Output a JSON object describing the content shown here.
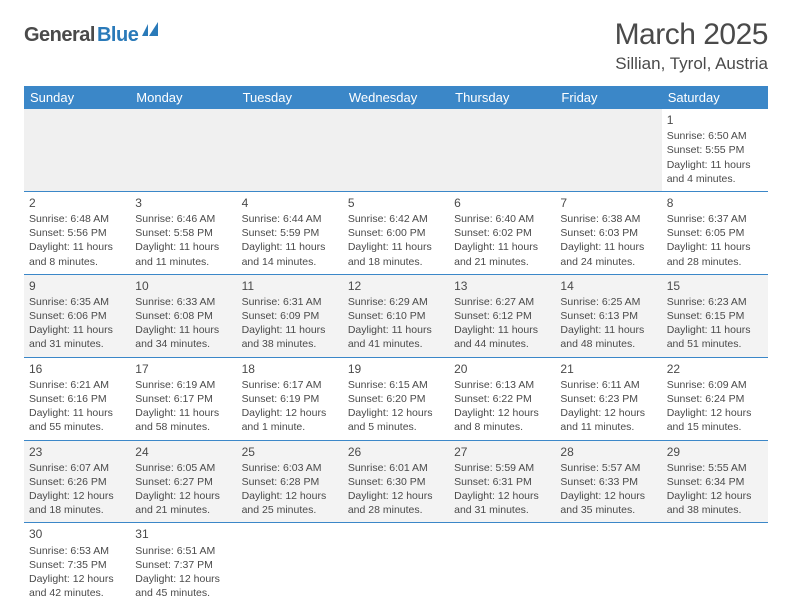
{
  "logo": {
    "dark": "General",
    "blue": "Blue"
  },
  "title": "March 2025",
  "location": "Sillian, Tyrol, Austria",
  "colors": {
    "header_bg": "#3b87c8",
    "header_fg": "#ffffff",
    "row_alt_bg": "#f3f3f3",
    "border": "#3b87c8",
    "text": "#4a4a4a",
    "logo_blue": "#2a7ab9"
  },
  "weekdays": [
    "Sunday",
    "Monday",
    "Tuesday",
    "Wednesday",
    "Thursday",
    "Friday",
    "Saturday"
  ],
  "weeks": [
    [
      null,
      null,
      null,
      null,
      null,
      null,
      {
        "n": "1",
        "sr": "Sunrise: 6:50 AM",
        "ss": "Sunset: 5:55 PM",
        "d1": "Daylight: 11 hours",
        "d2": "and 4 minutes."
      }
    ],
    [
      {
        "n": "2",
        "sr": "Sunrise: 6:48 AM",
        "ss": "Sunset: 5:56 PM",
        "d1": "Daylight: 11 hours",
        "d2": "and 8 minutes."
      },
      {
        "n": "3",
        "sr": "Sunrise: 6:46 AM",
        "ss": "Sunset: 5:58 PM",
        "d1": "Daylight: 11 hours",
        "d2": "and 11 minutes."
      },
      {
        "n": "4",
        "sr": "Sunrise: 6:44 AM",
        "ss": "Sunset: 5:59 PM",
        "d1": "Daylight: 11 hours",
        "d2": "and 14 minutes."
      },
      {
        "n": "5",
        "sr": "Sunrise: 6:42 AM",
        "ss": "Sunset: 6:00 PM",
        "d1": "Daylight: 11 hours",
        "d2": "and 18 minutes."
      },
      {
        "n": "6",
        "sr": "Sunrise: 6:40 AM",
        "ss": "Sunset: 6:02 PM",
        "d1": "Daylight: 11 hours",
        "d2": "and 21 minutes."
      },
      {
        "n": "7",
        "sr": "Sunrise: 6:38 AM",
        "ss": "Sunset: 6:03 PM",
        "d1": "Daylight: 11 hours",
        "d2": "and 24 minutes."
      },
      {
        "n": "8",
        "sr": "Sunrise: 6:37 AM",
        "ss": "Sunset: 6:05 PM",
        "d1": "Daylight: 11 hours",
        "d2": "and 28 minutes."
      }
    ],
    [
      {
        "n": "9",
        "sr": "Sunrise: 6:35 AM",
        "ss": "Sunset: 6:06 PM",
        "d1": "Daylight: 11 hours",
        "d2": "and 31 minutes."
      },
      {
        "n": "10",
        "sr": "Sunrise: 6:33 AM",
        "ss": "Sunset: 6:08 PM",
        "d1": "Daylight: 11 hours",
        "d2": "and 34 minutes."
      },
      {
        "n": "11",
        "sr": "Sunrise: 6:31 AM",
        "ss": "Sunset: 6:09 PM",
        "d1": "Daylight: 11 hours",
        "d2": "and 38 minutes."
      },
      {
        "n": "12",
        "sr": "Sunrise: 6:29 AM",
        "ss": "Sunset: 6:10 PM",
        "d1": "Daylight: 11 hours",
        "d2": "and 41 minutes."
      },
      {
        "n": "13",
        "sr": "Sunrise: 6:27 AM",
        "ss": "Sunset: 6:12 PM",
        "d1": "Daylight: 11 hours",
        "d2": "and 44 minutes."
      },
      {
        "n": "14",
        "sr": "Sunrise: 6:25 AM",
        "ss": "Sunset: 6:13 PM",
        "d1": "Daylight: 11 hours",
        "d2": "and 48 minutes."
      },
      {
        "n": "15",
        "sr": "Sunrise: 6:23 AM",
        "ss": "Sunset: 6:15 PM",
        "d1": "Daylight: 11 hours",
        "d2": "and 51 minutes."
      }
    ],
    [
      {
        "n": "16",
        "sr": "Sunrise: 6:21 AM",
        "ss": "Sunset: 6:16 PM",
        "d1": "Daylight: 11 hours",
        "d2": "and 55 minutes."
      },
      {
        "n": "17",
        "sr": "Sunrise: 6:19 AM",
        "ss": "Sunset: 6:17 PM",
        "d1": "Daylight: 11 hours",
        "d2": "and 58 minutes."
      },
      {
        "n": "18",
        "sr": "Sunrise: 6:17 AM",
        "ss": "Sunset: 6:19 PM",
        "d1": "Daylight: 12 hours",
        "d2": "and 1 minute."
      },
      {
        "n": "19",
        "sr": "Sunrise: 6:15 AM",
        "ss": "Sunset: 6:20 PM",
        "d1": "Daylight: 12 hours",
        "d2": "and 5 minutes."
      },
      {
        "n": "20",
        "sr": "Sunrise: 6:13 AM",
        "ss": "Sunset: 6:22 PM",
        "d1": "Daylight: 12 hours",
        "d2": "and 8 minutes."
      },
      {
        "n": "21",
        "sr": "Sunrise: 6:11 AM",
        "ss": "Sunset: 6:23 PM",
        "d1": "Daylight: 12 hours",
        "d2": "and 11 minutes."
      },
      {
        "n": "22",
        "sr": "Sunrise: 6:09 AM",
        "ss": "Sunset: 6:24 PM",
        "d1": "Daylight: 12 hours",
        "d2": "and 15 minutes."
      }
    ],
    [
      {
        "n": "23",
        "sr": "Sunrise: 6:07 AM",
        "ss": "Sunset: 6:26 PM",
        "d1": "Daylight: 12 hours",
        "d2": "and 18 minutes."
      },
      {
        "n": "24",
        "sr": "Sunrise: 6:05 AM",
        "ss": "Sunset: 6:27 PM",
        "d1": "Daylight: 12 hours",
        "d2": "and 21 minutes."
      },
      {
        "n": "25",
        "sr": "Sunrise: 6:03 AM",
        "ss": "Sunset: 6:28 PM",
        "d1": "Daylight: 12 hours",
        "d2": "and 25 minutes."
      },
      {
        "n": "26",
        "sr": "Sunrise: 6:01 AM",
        "ss": "Sunset: 6:30 PM",
        "d1": "Daylight: 12 hours",
        "d2": "and 28 minutes."
      },
      {
        "n": "27",
        "sr": "Sunrise: 5:59 AM",
        "ss": "Sunset: 6:31 PM",
        "d1": "Daylight: 12 hours",
        "d2": "and 31 minutes."
      },
      {
        "n": "28",
        "sr": "Sunrise: 5:57 AM",
        "ss": "Sunset: 6:33 PM",
        "d1": "Daylight: 12 hours",
        "d2": "and 35 minutes."
      },
      {
        "n": "29",
        "sr": "Sunrise: 5:55 AM",
        "ss": "Sunset: 6:34 PM",
        "d1": "Daylight: 12 hours",
        "d2": "and 38 minutes."
      }
    ],
    [
      {
        "n": "30",
        "sr": "Sunrise: 6:53 AM",
        "ss": "Sunset: 7:35 PM",
        "d1": "Daylight: 12 hours",
        "d2": "and 42 minutes."
      },
      {
        "n": "31",
        "sr": "Sunrise: 6:51 AM",
        "ss": "Sunset: 7:37 PM",
        "d1": "Daylight: 12 hours",
        "d2": "and 45 minutes."
      },
      null,
      null,
      null,
      null,
      null
    ]
  ]
}
